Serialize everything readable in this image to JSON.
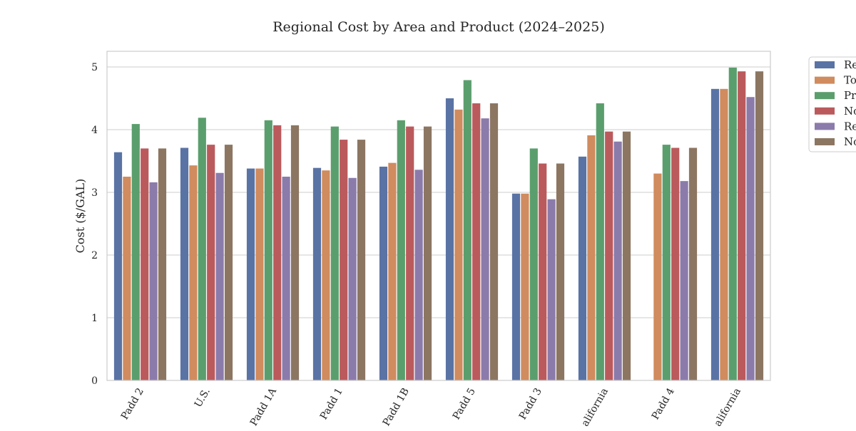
{
  "chart_data": {
    "type": "bar",
    "title": "Regional Cost by Area and Product (2024–2025)",
    "xlabel": "",
    "ylabel": "Cost ($/GAL)",
    "ylim": [
      0,
      5.25
    ],
    "yticks": [
      0,
      1,
      2,
      3,
      4,
      5
    ],
    "grid": true,
    "legend_position": "right, outside plot (clipped)",
    "categories": [
      "Padd 2",
      "U.S.",
      "Padd 1A",
      "Padd 1",
      "Padd 1B",
      "Padd 5",
      "Padd 3",
      "alifornia",
      "Padd 4",
      "alifornia"
    ],
    "series": [
      {
        "name": "Re",
        "color": "#5a73a5",
        "values": [
          3.64,
          3.71,
          3.38,
          3.39,
          3.41,
          4.5,
          2.98,
          3.57,
          null,
          4.65
        ]
      },
      {
        "name": "To",
        "color": "#d08b5e",
        "values": [
          3.25,
          3.43,
          3.38,
          3.35,
          3.47,
          4.32,
          2.98,
          3.91,
          3.3,
          4.65
        ]
      },
      {
        "name": "Pr",
        "color": "#5b9e6d",
        "values": [
          4.09,
          4.19,
          4.15,
          4.05,
          4.15,
          4.79,
          3.7,
          4.42,
          3.76,
          4.99
        ]
      },
      {
        "name": "No",
        "color": "#bb5a5c",
        "values": [
          3.7,
          3.76,
          4.07,
          3.84,
          4.05,
          4.42,
          3.46,
          3.97,
          3.71,
          4.93
        ]
      },
      {
        "name": "Re",
        "color": "#8b7bab",
        "values": [
          3.16,
          3.31,
          3.25,
          3.23,
          3.36,
          4.18,
          2.89,
          3.81,
          3.18,
          4.52
        ]
      },
      {
        "name": "No",
        "color": "#8c7662",
        "values": [
          3.7,
          3.76,
          4.07,
          3.84,
          4.05,
          4.42,
          3.46,
          3.97,
          3.71,
          4.93
        ]
      }
    ]
  }
}
